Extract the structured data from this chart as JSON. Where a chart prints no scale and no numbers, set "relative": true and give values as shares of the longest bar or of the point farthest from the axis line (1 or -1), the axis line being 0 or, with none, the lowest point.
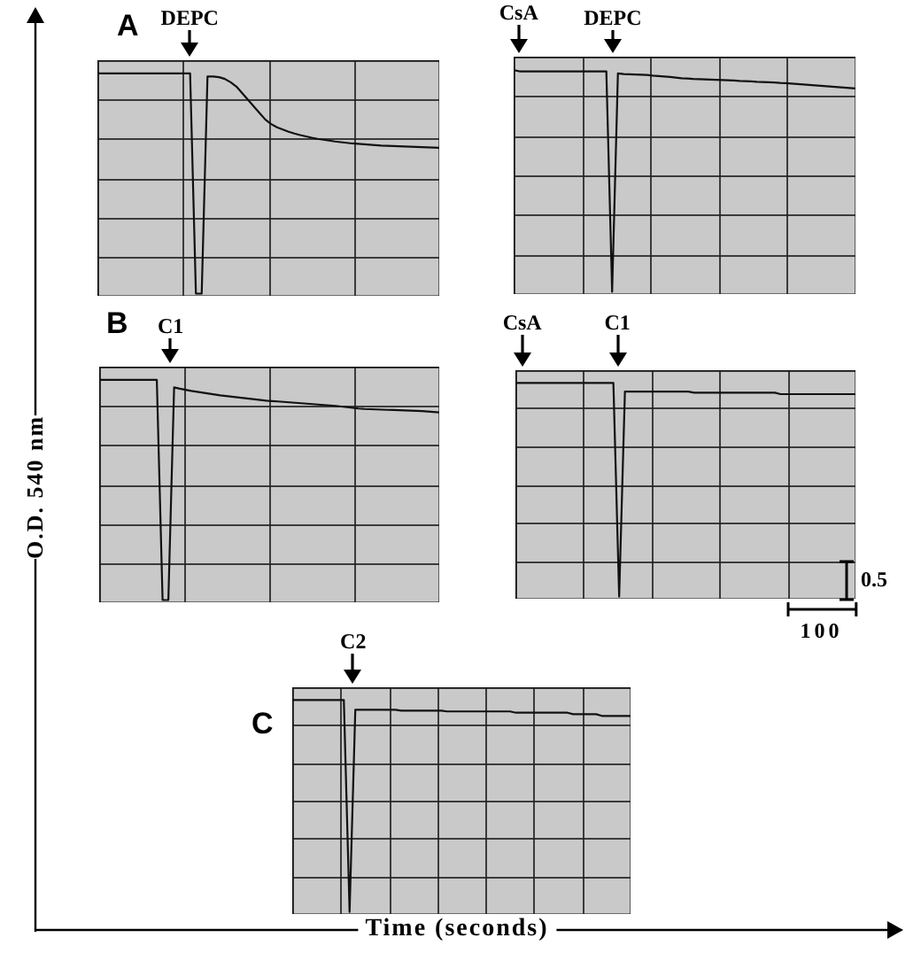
{
  "chart_data": [
    {
      "type": "line",
      "title": "A",
      "relative": true,
      "grid": true,
      "annotations": [
        "DEPC"
      ],
      "categories": [
        null,
        null,
        null,
        null,
        null,
        null,
        null,
        null,
        null,
        null,
        null,
        null,
        null,
        null,
        null,
        null,
        null,
        null,
        null,
        null,
        null,
        null,
        null,
        null,
        null,
        null,
        null,
        null,
        null,
        null,
        null,
        null,
        null,
        null,
        null,
        null,
        null,
        null,
        null,
        null,
        null,
        null,
        null,
        null,
        null,
        null,
        null,
        null,
        null,
        null,
        null,
        null,
        null,
        null,
        null,
        null,
        null,
        null,
        null,
        null
      ],
      "series": [
        {
          "color": "#111111",
          "values": [
            1,
            1,
            1,
            1,
            1,
            1,
            1,
            1,
            1,
            1,
            1,
            1,
            1,
            1,
            1,
            1,
            1,
            0,
            0,
            0.986,
            0.986,
            0.983,
            0.975,
            0.96,
            0.94,
            0.91,
            0.88,
            0.85,
            0.82,
            0.79,
            0.77,
            0.755,
            0.745,
            0.735,
            0.727,
            0.72,
            0.714,
            0.708,
            0.703,
            0.699,
            0.695,
            0.691,
            0.688,
            0.685,
            0.682,
            0.68,
            0.678,
            0.676,
            0.674,
            0.672,
            0.671,
            0.67,
            0.669,
            0.668,
            0.667,
            0.666,
            0.665,
            0.664,
            0.663,
            0.662
          ]
        }
      ]
    },
    {
      "type": "line",
      "relative": true,
      "grid": true,
      "annotations": [
        "CsA",
        "DEPC"
      ],
      "categories": [
        null,
        null,
        null,
        null,
        null,
        null,
        null,
        null,
        null,
        null,
        null,
        null,
        null,
        null,
        null,
        null,
        null,
        null,
        null,
        null,
        null,
        null,
        null,
        null,
        null,
        null,
        null,
        null,
        null,
        null,
        null,
        null,
        null,
        null,
        null,
        null,
        null,
        null,
        null,
        null,
        null,
        null,
        null,
        null,
        null,
        null,
        null,
        null,
        null,
        null,
        null,
        null,
        null,
        null,
        null,
        null,
        null,
        null,
        null,
        null
      ],
      "series": [
        {
          "color": "#111111",
          "values": [
            1,
            0.994,
            0.994,
            0.994,
            0.994,
            0.994,
            0.994,
            0.994,
            0.994,
            0.994,
            0.994,
            0.994,
            0.994,
            0.994,
            0.994,
            0.994,
            0.994,
            0,
            0.985,
            0.982,
            0.981,
            0.98,
            0.979,
            0.978,
            0.975,
            0.973,
            0.971,
            0.969,
            0.966,
            0.963,
            0.962,
            0.96,
            0.959,
            0.958,
            0.957,
            0.956,
            0.955,
            0.954,
            0.953,
            0.951,
            0.95,
            0.949,
            0.947,
            0.946,
            0.945,
            0.944,
            0.942,
            0.941,
            0.939,
            0.937,
            0.935,
            0.933,
            0.931,
            0.929,
            0.927,
            0.925,
            0.923,
            0.921,
            0.919,
            0.917
          ]
        }
      ]
    },
    {
      "type": "line",
      "title": "B",
      "ylabel": "O.D. 540 nm",
      "relative": true,
      "grid": true,
      "annotations": [
        "C1"
      ],
      "categories": [
        null,
        null,
        null,
        null,
        null,
        null,
        null,
        null,
        null,
        null,
        null,
        null,
        null,
        null,
        null,
        null,
        null,
        null,
        null,
        null,
        null,
        null,
        null,
        null,
        null,
        null,
        null,
        null,
        null,
        null,
        null,
        null,
        null,
        null,
        null,
        null,
        null,
        null,
        null,
        null,
        null,
        null,
        null,
        null,
        null,
        null,
        null,
        null,
        null,
        null,
        null,
        null,
        null,
        null,
        null,
        null,
        null,
        null,
        null,
        null
      ],
      "series": [
        {
          "color": "#111111",
          "values": [
            1,
            1,
            1,
            1,
            1,
            1,
            1,
            1,
            1,
            1,
            1,
            0,
            0,
            0.966,
            0.96,
            0.955,
            0.95,
            0.946,
            0.942,
            0.938,
            0.934,
            0.93,
            0.927,
            0.924,
            0.921,
            0.918,
            0.915,
            0.912,
            0.909,
            0.906,
            0.904,
            0.902,
            0.9,
            0.898,
            0.896,
            0.894,
            0.892,
            0.89,
            0.888,
            0.886,
            0.884,
            0.882,
            0.879,
            0.876,
            0.873,
            0.87,
            0.868,
            0.867,
            0.866,
            0.865,
            0.864,
            0.863,
            0.862,
            0.861,
            0.86,
            0.859,
            0.858,
            0.856,
            0.854,
            0.852
          ]
        }
      ]
    },
    {
      "type": "line",
      "relative": true,
      "grid": true,
      "annotations": [
        "CsA",
        "C1",
        "0.5",
        "100"
      ],
      "categories": [
        null,
        null,
        null,
        null,
        null,
        null,
        null,
        null,
        null,
        null,
        null,
        null,
        null,
        null,
        null,
        null,
        null,
        null,
        null,
        null,
        null,
        null,
        null,
        null,
        null,
        null,
        null,
        null,
        null,
        null,
        null,
        null,
        null,
        null,
        null,
        null,
        null,
        null,
        null,
        null,
        null,
        null,
        null,
        null,
        null,
        null,
        null,
        null,
        null,
        null,
        null,
        null,
        null,
        null,
        null,
        null,
        null,
        null,
        null,
        null
      ],
      "series": [
        {
          "color": "#111111",
          "values": [
            1,
            1,
            1,
            1,
            1,
            1,
            1,
            1,
            1,
            1,
            1,
            1,
            1,
            1,
            1,
            1,
            1,
            1,
            0,
            0.96,
            0.96,
            0.96,
            0.96,
            0.96,
            0.96,
            0.96,
            0.96,
            0.96,
            0.96,
            0.96,
            0.96,
            0.955,
            0.955,
            0.955,
            0.955,
            0.955,
            0.955,
            0.955,
            0.955,
            0.955,
            0.955,
            0.955,
            0.955,
            0.955,
            0.955,
            0.955,
            0.948,
            0.948,
            0.948,
            0.948,
            0.948,
            0.948,
            0.948,
            0.948,
            0.948,
            0.948,
            0.948,
            0.948,
            0.948,
            0.948
          ]
        }
      ]
    },
    {
      "type": "line",
      "title": "C",
      "xlabel": "Time (seconds)",
      "relative": true,
      "grid": true,
      "annotations": [
        "C2"
      ],
      "categories": [
        null,
        null,
        null,
        null,
        null,
        null,
        null,
        null,
        null,
        null,
        null,
        null,
        null,
        null,
        null,
        null,
        null,
        null,
        null,
        null,
        null,
        null,
        null,
        null,
        null,
        null,
        null,
        null,
        null,
        null,
        null,
        null,
        null,
        null,
        null,
        null,
        null,
        null,
        null,
        null,
        null,
        null,
        null,
        null,
        null,
        null,
        null,
        null,
        null,
        null,
        null,
        null,
        null,
        null,
        null,
        null,
        null,
        null,
        null,
        null
      ],
      "series": [
        {
          "color": "#111111",
          "values": [
            1,
            1,
            1,
            1,
            1,
            1,
            1,
            1,
            1,
            1,
            0,
            0.954,
            0.954,
            0.954,
            0.954,
            0.954,
            0.954,
            0.954,
            0.954,
            0.95,
            0.95,
            0.95,
            0.95,
            0.95,
            0.95,
            0.95,
            0.95,
            0.946,
            0.946,
            0.946,
            0.946,
            0.946,
            0.946,
            0.946,
            0.946,
            0.946,
            0.946,
            0.946,
            0.946,
            0.94,
            0.94,
            0.94,
            0.94,
            0.94,
            0.94,
            0.94,
            0.94,
            0.94,
            0.94,
            0.933,
            0.933,
            0.933,
            0.933,
            0.933,
            0.925,
            0.925,
            0.925,
            0.925,
            0.925,
            0.925
          ]
        }
      ]
    }
  ]
}
